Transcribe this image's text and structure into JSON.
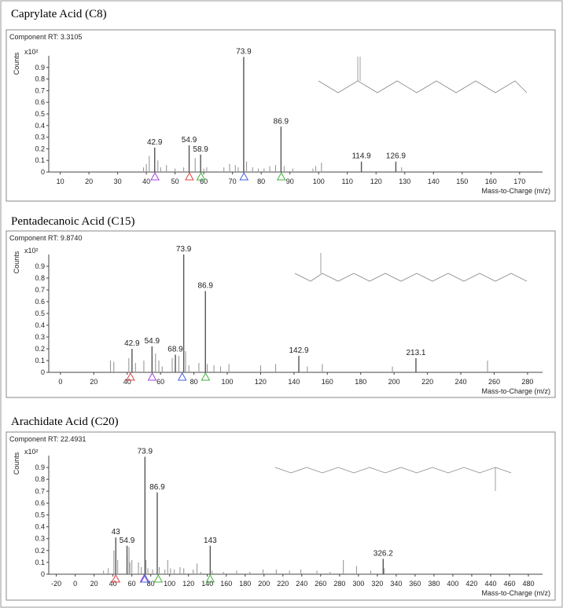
{
  "chart_data": [
    {
      "type": "bar",
      "title": "Caprylate Acid (C8)",
      "subtitle": "Component RT: 3.3105",
      "y_label": "Counts",
      "y_scale_label": "x10²",
      "x_label": "Mass-to-Charge (m/z)",
      "xlim": [
        6,
        178
      ],
      "xticks": [
        10,
        20,
        30,
        40,
        50,
        60,
        70,
        80,
        90,
        100,
        110,
        120,
        130,
        140,
        150,
        160,
        170
      ],
      "ylim": [
        0,
        1.0
      ],
      "yticks": [
        0,
        0.1,
        0.2,
        0.3,
        0.4,
        0.5,
        0.6,
        0.7,
        0.8,
        0.9
      ],
      "peaks": {
        "x": [
          42.9,
          54.9,
          58.9,
          73.9,
          86.9,
          114.9,
          126.9
        ],
        "values": [
          0.21,
          0.23,
          0.15,
          0.99,
          0.39,
          0.09,
          0.09
        ]
      },
      "minor_peaks": {
        "x": [
          39,
          40,
          41,
          44,
          45,
          47,
          50,
          53,
          57,
          60,
          61,
          67,
          69,
          71,
          72,
          74.9,
          77,
          79,
          81,
          83,
          85,
          88,
          91,
          98,
          99,
          101,
          128.9
        ],
        "values": [
          0.04,
          0.07,
          0.14,
          0.1,
          0.04,
          0.06,
          0.03,
          0.04,
          0.12,
          0.03,
          0.04,
          0.04,
          0.07,
          0.06,
          0.04,
          0.09,
          0.04,
          0.03,
          0.03,
          0.05,
          0.06,
          0.05,
          0.03,
          0.03,
          0.05,
          0.08,
          0.04
        ]
      },
      "markers": {
        "x": [
          43,
          55,
          59,
          74,
          87
        ],
        "colors": [
          "#a040e0",
          "#e04040",
          "#40b040",
          "#4060e0",
          "#40b040"
        ]
      }
    },
    {
      "type": "bar",
      "title": "Pentadecanoic Acid (C15)",
      "subtitle": "Component RT: 9.8740",
      "y_label": "Counts",
      "y_scale_label": "x10²",
      "x_label": "Mass-to-Charge (m/z)",
      "xlim": [
        -7,
        289
      ],
      "xticks": [
        0,
        20,
        40,
        60,
        80,
        100,
        120,
        140,
        160,
        180,
        200,
        220,
        240,
        260,
        280
      ],
      "ylim": [
        0,
        1.0
      ],
      "yticks": [
        0,
        0.1,
        0.2,
        0.3,
        0.4,
        0.5,
        0.6,
        0.7,
        0.8,
        0.9
      ],
      "peaks": {
        "x": [
          42.9,
          54.9,
          68.9,
          73.9,
          86.9,
          142.9,
          213.1
        ],
        "values": [
          0.2,
          0.22,
          0.15,
          1.0,
          0.69,
          0.14,
          0.12
        ]
      },
      "minor_peaks": {
        "x": [
          30,
          32,
          41,
          45,
          50,
          55,
          57,
          59,
          61,
          67,
          71,
          75,
          77,
          83,
          88,
          92,
          96,
          101,
          120,
          129,
          148,
          157,
          199,
          256
        ],
        "values": [
          0.1,
          0.09,
          0.12,
          0.08,
          0.1,
          0.13,
          0.16,
          0.1,
          0.05,
          0.12,
          0.14,
          0.18,
          0.06,
          0.08,
          0.07,
          0.06,
          0.05,
          0.07,
          0.06,
          0.07,
          0.05,
          0.07,
          0.05,
          0.1
        ]
      },
      "markers": {
        "x": [
          42,
          55,
          73,
          87
        ],
        "colors": [
          "#e04040",
          "#a040e0",
          "#4060e0",
          "#40b040"
        ]
      }
    },
    {
      "type": "bar",
      "title": "Arachidate Acid (C20)",
      "subtitle": "Component RT: 22.4931",
      "y_label": "Counts",
      "y_scale_label": "x10²",
      "x_label": "Mass-to-Charge (m/z)",
      "xlim": [
        -28,
        495
      ],
      "xticks": [
        -20,
        0,
        20,
        40,
        60,
        80,
        100,
        120,
        140,
        160,
        180,
        200,
        220,
        240,
        260,
        280,
        300,
        320,
        340,
        360,
        380,
        400,
        420,
        440,
        460,
        480
      ],
      "ylim": [
        0,
        1.0
      ],
      "yticks": [
        0,
        0.1,
        0.2,
        0.3,
        0.4,
        0.5,
        0.6,
        0.7,
        0.8,
        0.9
      ],
      "peaks": {
        "x": [
          43.0,
          54.9,
          73.9,
          86.9,
          143.0,
          326.2
        ],
        "values": [
          0.31,
          0.24,
          0.99,
          0.69,
          0.24,
          0.13
        ]
      },
      "minor_peaks": {
        "x": [
          30,
          35,
          41,
          45,
          55,
          57,
          58,
          60,
          67,
          70,
          75,
          77,
          82,
          89,
          95,
          98,
          101,
          105,
          111,
          115,
          125,
          129,
          133,
          145,
          157,
          171,
          185,
          199,
          213,
          227,
          239,
          256,
          270,
          284,
          298,
          313,
          327.3
        ],
        "values": [
          0.03,
          0.05,
          0.2,
          0.12,
          0.16,
          0.23,
          0.1,
          0.12,
          0.1,
          0.06,
          0.12,
          0.05,
          0.04,
          0.06,
          0.04,
          0.12,
          0.05,
          0.04,
          0.06,
          0.05,
          0.04,
          0.09,
          0.02,
          0.03,
          0.02,
          0.03,
          0.02,
          0.04,
          0.04,
          0.03,
          0.04,
          0.03,
          0.02,
          0.12,
          0.07,
          0.03,
          0.05
        ]
      },
      "markers": {
        "x": [
          43,
          73,
          74,
          88,
          143
        ],
        "colors": [
          "#e04040",
          "#a040e0",
          "#4060e0",
          "#40b040",
          "#40b040"
        ]
      }
    }
  ]
}
